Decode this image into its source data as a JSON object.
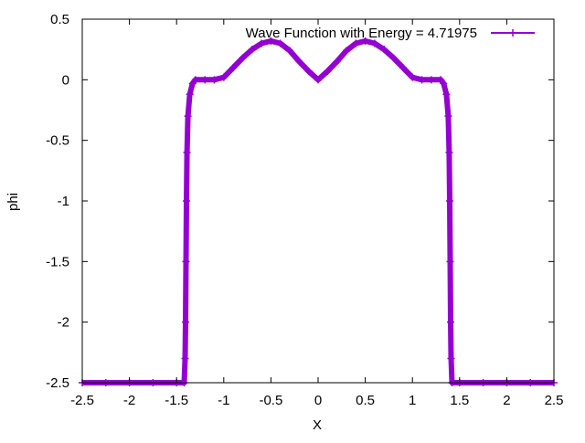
{
  "chart_data": {
    "type": "scatter",
    "title": "",
    "xlabel": "X",
    "ylabel": "phi",
    "xlim": [
      -2.5,
      2.5
    ],
    "ylim": [
      -2.5,
      0.5
    ],
    "x_ticks": [
      -2.5,
      -2,
      -1.5,
      -1,
      -0.5,
      0,
      0.5,
      1,
      1.5,
      2,
      2.5
    ],
    "x_tick_labels": [
      "-2.5",
      "-2",
      "-1.5",
      "-1",
      "-0.5",
      "0",
      "0.5",
      "1",
      "1.5",
      "2",
      "2.5"
    ],
    "y_ticks": [
      -2.5,
      -2,
      -1.5,
      -1,
      -0.5,
      0,
      0.5
    ],
    "y_tick_labels": [
      "-2.5",
      "-2",
      "-1.5",
      "-1",
      "-0.5",
      "0",
      "0.5"
    ],
    "grid": false,
    "legend_position": "top-right",
    "series": [
      {
        "name": "Wave Function with Energy = 4.71975",
        "color": "#9400d3",
        "marker": "plus",
        "points": [
          [
            -2.5,
            -2.5
          ],
          [
            -2.25,
            -2.5
          ],
          [
            -2.0,
            -2.5
          ],
          [
            -1.75,
            -2.5
          ],
          [
            -1.5,
            -2.5
          ],
          [
            -1.42,
            -2.5
          ],
          [
            -1.41,
            -2.3
          ],
          [
            -1.405,
            -2.0
          ],
          [
            -1.4,
            -1.5
          ],
          [
            -1.395,
            -1.0
          ],
          [
            -1.39,
            -0.6
          ],
          [
            -1.38,
            -0.3
          ],
          [
            -1.36,
            -0.12
          ],
          [
            -1.33,
            -0.03
          ],
          [
            -1.3,
            0.0
          ],
          [
            -1.2,
            0.0
          ],
          [
            -1.1,
            0.0
          ],
          [
            -1.0,
            0.02
          ],
          [
            -0.9,
            0.1
          ],
          [
            -0.8,
            0.18
          ],
          [
            -0.7,
            0.25
          ],
          [
            -0.6,
            0.3
          ],
          [
            -0.5,
            0.32
          ],
          [
            -0.4,
            0.3
          ],
          [
            -0.3,
            0.24
          ],
          [
            -0.2,
            0.15
          ],
          [
            -0.1,
            0.07
          ],
          [
            0.0,
            0.0
          ],
          [
            0.1,
            0.07
          ],
          [
            0.2,
            0.15
          ],
          [
            0.3,
            0.24
          ],
          [
            0.4,
            0.3
          ],
          [
            0.5,
            0.32
          ],
          [
            0.6,
            0.3
          ],
          [
            0.7,
            0.25
          ],
          [
            0.8,
            0.18
          ],
          [
            0.9,
            0.1
          ],
          [
            1.0,
            0.02
          ],
          [
            1.1,
            0.0
          ],
          [
            1.2,
            0.0
          ],
          [
            1.3,
            0.0
          ],
          [
            1.33,
            -0.03
          ],
          [
            1.36,
            -0.12
          ],
          [
            1.38,
            -0.3
          ],
          [
            1.39,
            -0.6
          ],
          [
            1.395,
            -1.0
          ],
          [
            1.4,
            -1.5
          ],
          [
            1.405,
            -2.0
          ],
          [
            1.41,
            -2.3
          ],
          [
            1.42,
            -2.5
          ],
          [
            1.5,
            -2.5
          ],
          [
            1.75,
            -2.5
          ],
          [
            2.0,
            -2.5
          ],
          [
            2.25,
            -2.5
          ],
          [
            2.5,
            -2.5
          ]
        ]
      }
    ]
  }
}
